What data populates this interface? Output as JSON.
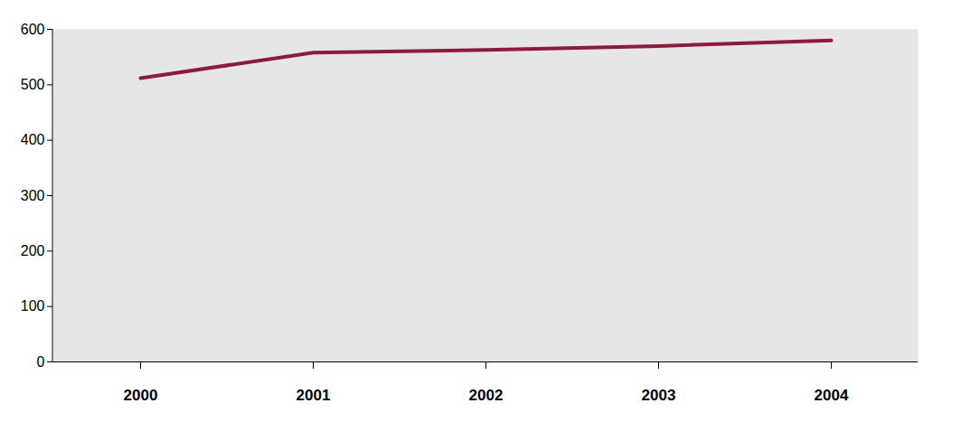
{
  "chart_data": {
    "type": "line",
    "categories": [
      "2000",
      "2001",
      "2002",
      "2003",
      "2004"
    ],
    "values": [
      512,
      558,
      563,
      570,
      580
    ],
    "color": "#8c1c3c",
    "ylim": [
      0,
      600
    ],
    "yticks": [
      0,
      100,
      200,
      300,
      400,
      500,
      600
    ],
    "grid": false
  }
}
